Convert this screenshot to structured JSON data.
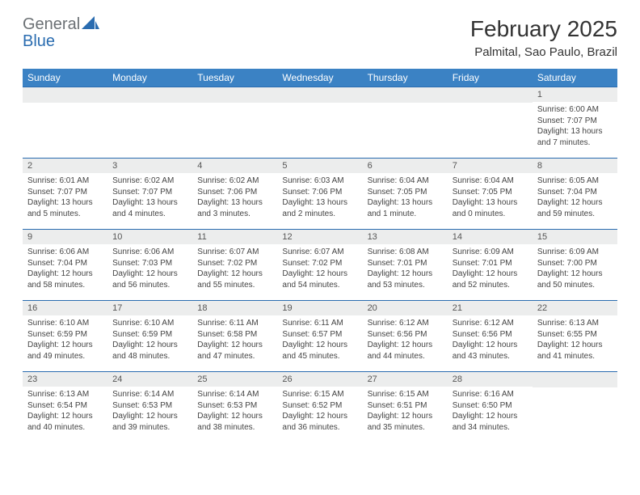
{
  "brand": {
    "text1": "General",
    "text2": "Blue",
    "text_color_gray": "#6b7074",
    "text_color_blue": "#2a6cb0",
    "shape_color": "#2a6cb0"
  },
  "header": {
    "month_title": "February 2025",
    "location": "Palmital, Sao Paulo, Brazil"
  },
  "colors": {
    "header_bg": "#3b82c4",
    "header_text": "#ffffff",
    "row_border": "#2a6cb0",
    "daynum_bg": "#eceded",
    "body_text": "#444444",
    "page_bg": "#ffffff"
  },
  "day_labels": [
    "Sunday",
    "Monday",
    "Tuesday",
    "Wednesday",
    "Thursday",
    "Friday",
    "Saturday"
  ],
  "weeks": [
    [
      {
        "num": "",
        "sunrise": "",
        "sunset": "",
        "daylight": ""
      },
      {
        "num": "",
        "sunrise": "",
        "sunset": "",
        "daylight": ""
      },
      {
        "num": "",
        "sunrise": "",
        "sunset": "",
        "daylight": ""
      },
      {
        "num": "",
        "sunrise": "",
        "sunset": "",
        "daylight": ""
      },
      {
        "num": "",
        "sunrise": "",
        "sunset": "",
        "daylight": ""
      },
      {
        "num": "",
        "sunrise": "",
        "sunset": "",
        "daylight": ""
      },
      {
        "num": "1",
        "sunrise": "Sunrise: 6:00 AM",
        "sunset": "Sunset: 7:07 PM",
        "daylight": "Daylight: 13 hours and 7 minutes."
      }
    ],
    [
      {
        "num": "2",
        "sunrise": "Sunrise: 6:01 AM",
        "sunset": "Sunset: 7:07 PM",
        "daylight": "Daylight: 13 hours and 5 minutes."
      },
      {
        "num": "3",
        "sunrise": "Sunrise: 6:02 AM",
        "sunset": "Sunset: 7:07 PM",
        "daylight": "Daylight: 13 hours and 4 minutes."
      },
      {
        "num": "4",
        "sunrise": "Sunrise: 6:02 AM",
        "sunset": "Sunset: 7:06 PM",
        "daylight": "Daylight: 13 hours and 3 minutes."
      },
      {
        "num": "5",
        "sunrise": "Sunrise: 6:03 AM",
        "sunset": "Sunset: 7:06 PM",
        "daylight": "Daylight: 13 hours and 2 minutes."
      },
      {
        "num": "6",
        "sunrise": "Sunrise: 6:04 AM",
        "sunset": "Sunset: 7:05 PM",
        "daylight": "Daylight: 13 hours and 1 minute."
      },
      {
        "num": "7",
        "sunrise": "Sunrise: 6:04 AM",
        "sunset": "Sunset: 7:05 PM",
        "daylight": "Daylight: 13 hours and 0 minutes."
      },
      {
        "num": "8",
        "sunrise": "Sunrise: 6:05 AM",
        "sunset": "Sunset: 7:04 PM",
        "daylight": "Daylight: 12 hours and 59 minutes."
      }
    ],
    [
      {
        "num": "9",
        "sunrise": "Sunrise: 6:06 AM",
        "sunset": "Sunset: 7:04 PM",
        "daylight": "Daylight: 12 hours and 58 minutes."
      },
      {
        "num": "10",
        "sunrise": "Sunrise: 6:06 AM",
        "sunset": "Sunset: 7:03 PM",
        "daylight": "Daylight: 12 hours and 56 minutes."
      },
      {
        "num": "11",
        "sunrise": "Sunrise: 6:07 AM",
        "sunset": "Sunset: 7:02 PM",
        "daylight": "Daylight: 12 hours and 55 minutes."
      },
      {
        "num": "12",
        "sunrise": "Sunrise: 6:07 AM",
        "sunset": "Sunset: 7:02 PM",
        "daylight": "Daylight: 12 hours and 54 minutes."
      },
      {
        "num": "13",
        "sunrise": "Sunrise: 6:08 AM",
        "sunset": "Sunset: 7:01 PM",
        "daylight": "Daylight: 12 hours and 53 minutes."
      },
      {
        "num": "14",
        "sunrise": "Sunrise: 6:09 AM",
        "sunset": "Sunset: 7:01 PM",
        "daylight": "Daylight: 12 hours and 52 minutes."
      },
      {
        "num": "15",
        "sunrise": "Sunrise: 6:09 AM",
        "sunset": "Sunset: 7:00 PM",
        "daylight": "Daylight: 12 hours and 50 minutes."
      }
    ],
    [
      {
        "num": "16",
        "sunrise": "Sunrise: 6:10 AM",
        "sunset": "Sunset: 6:59 PM",
        "daylight": "Daylight: 12 hours and 49 minutes."
      },
      {
        "num": "17",
        "sunrise": "Sunrise: 6:10 AM",
        "sunset": "Sunset: 6:59 PM",
        "daylight": "Daylight: 12 hours and 48 minutes."
      },
      {
        "num": "18",
        "sunrise": "Sunrise: 6:11 AM",
        "sunset": "Sunset: 6:58 PM",
        "daylight": "Daylight: 12 hours and 47 minutes."
      },
      {
        "num": "19",
        "sunrise": "Sunrise: 6:11 AM",
        "sunset": "Sunset: 6:57 PM",
        "daylight": "Daylight: 12 hours and 45 minutes."
      },
      {
        "num": "20",
        "sunrise": "Sunrise: 6:12 AM",
        "sunset": "Sunset: 6:56 PM",
        "daylight": "Daylight: 12 hours and 44 minutes."
      },
      {
        "num": "21",
        "sunrise": "Sunrise: 6:12 AM",
        "sunset": "Sunset: 6:56 PM",
        "daylight": "Daylight: 12 hours and 43 minutes."
      },
      {
        "num": "22",
        "sunrise": "Sunrise: 6:13 AM",
        "sunset": "Sunset: 6:55 PM",
        "daylight": "Daylight: 12 hours and 41 minutes."
      }
    ],
    [
      {
        "num": "23",
        "sunrise": "Sunrise: 6:13 AM",
        "sunset": "Sunset: 6:54 PM",
        "daylight": "Daylight: 12 hours and 40 minutes."
      },
      {
        "num": "24",
        "sunrise": "Sunrise: 6:14 AM",
        "sunset": "Sunset: 6:53 PM",
        "daylight": "Daylight: 12 hours and 39 minutes."
      },
      {
        "num": "25",
        "sunrise": "Sunrise: 6:14 AM",
        "sunset": "Sunset: 6:53 PM",
        "daylight": "Daylight: 12 hours and 38 minutes."
      },
      {
        "num": "26",
        "sunrise": "Sunrise: 6:15 AM",
        "sunset": "Sunset: 6:52 PM",
        "daylight": "Daylight: 12 hours and 36 minutes."
      },
      {
        "num": "27",
        "sunrise": "Sunrise: 6:15 AM",
        "sunset": "Sunset: 6:51 PM",
        "daylight": "Daylight: 12 hours and 35 minutes."
      },
      {
        "num": "28",
        "sunrise": "Sunrise: 6:16 AM",
        "sunset": "Sunset: 6:50 PM",
        "daylight": "Daylight: 12 hours and 34 minutes."
      },
      {
        "num": "",
        "sunrise": "",
        "sunset": "",
        "daylight": ""
      }
    ]
  ]
}
